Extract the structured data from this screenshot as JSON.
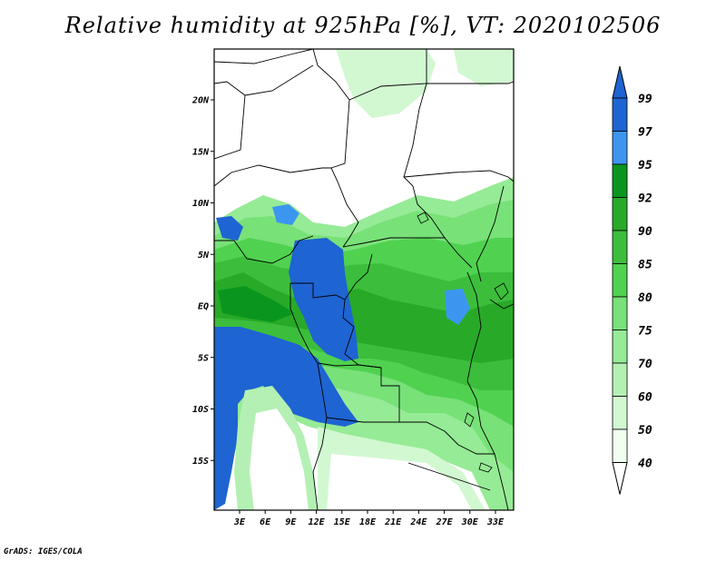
{
  "title": "Relative humidity at 925hPa [%], VT: 2020102506",
  "footer": "GrADS: IGES/COLA",
  "map": {
    "lat_ticks": [
      {
        "label": "20N",
        "value": 20
      },
      {
        "label": "15N",
        "value": 15
      },
      {
        "label": "10N",
        "value": 10
      },
      {
        "label": "5N",
        "value": 5
      },
      {
        "label": "EQ",
        "value": 0
      },
      {
        "label": "5S",
        "value": -5
      },
      {
        "label": "10S",
        "value": -10
      },
      {
        "label": "15S",
        "value": -15
      }
    ],
    "lon_ticks": [
      {
        "label": "3E",
        "value": 3
      },
      {
        "label": "6E",
        "value": 6
      },
      {
        "label": "9E",
        "value": 9
      },
      {
        "label": "12E",
        "value": 12
      },
      {
        "label": "15E",
        "value": 15
      },
      {
        "label": "18E",
        "value": 18
      },
      {
        "label": "21E",
        "value": 21
      },
      {
        "label": "24E",
        "value": 24
      },
      {
        "label": "27E",
        "value": 27
      },
      {
        "label": "30E",
        "value": 30
      },
      {
        "label": "33E",
        "value": 33
      }
    ]
  },
  "colorbar": {
    "levels": [
      {
        "label": "99",
        "color": "#1e64d2"
      },
      {
        "label": "97",
        "color": "#1e64d2"
      },
      {
        "label": "95",
        "color": "#3c96f0"
      },
      {
        "label": "92",
        "color": "#0a961e"
      },
      {
        "label": "90",
        "color": "#28aa28"
      },
      {
        "label": "85",
        "color": "#3cbe3c"
      },
      {
        "label": "80",
        "color": "#50d250"
      },
      {
        "label": "75",
        "color": "#78e178"
      },
      {
        "label": "70",
        "color": "#96eb96"
      },
      {
        "label": "60",
        "color": "#b4f0b4"
      },
      {
        "label": "50",
        "color": "#d2f8d2"
      },
      {
        "label": "40",
        "color": "#f0fff0"
      }
    ],
    "top_arrow_color": "#1e64d2",
    "bottom_arrow_color": "#ffffff"
  }
}
